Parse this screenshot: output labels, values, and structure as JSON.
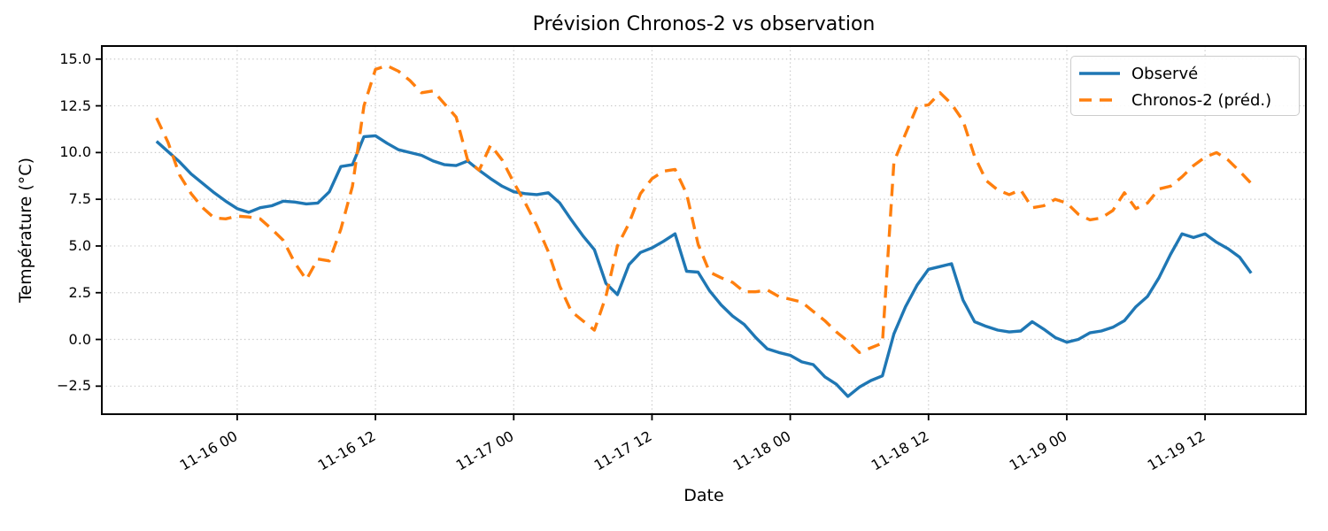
{
  "title": "Prévision Chronos-2 vs observation",
  "x_axis": {
    "label": "Date",
    "ticks": [
      {
        "hour": 7,
        "label": "11-16 00"
      },
      {
        "hour": 19,
        "label": "11-16 12"
      },
      {
        "hour": 31,
        "label": "11-17 00"
      },
      {
        "hour": 43,
        "label": "11-17 12"
      },
      {
        "hour": 55,
        "label": "11-18 00"
      },
      {
        "hour": 67,
        "label": "11-18 12"
      },
      {
        "hour": 79,
        "label": "11-19 00"
      },
      {
        "hour": 91,
        "label": "11-19 12"
      }
    ]
  },
  "y_axis": {
    "label": "Température (°C)",
    "ticks": [
      {
        "value": 15.0,
        "label": "15.0"
      },
      {
        "value": 12.5,
        "label": "12.5"
      },
      {
        "value": 10.0,
        "label": "10.0"
      },
      {
        "value": 7.5,
        "label": "7.5"
      },
      {
        "value": 5.0,
        "label": "5.0"
      },
      {
        "value": 2.5,
        "label": "2.5"
      },
      {
        "value": 0.0,
        "label": "0.0"
      },
      {
        "value": -2.5,
        "label": "−2.5"
      }
    ]
  },
  "legend": {
    "items": [
      {
        "label": "Observé",
        "color": "#1f77b4",
        "dashed": false
      },
      {
        "label": "Chronos-2 (préd.)",
        "color": "#ff7f0e",
        "dashed": true
      }
    ]
  },
  "colors": {
    "observed": "#1f77b4",
    "forecast": "#ff7f0e",
    "grid": "#c9c9c9",
    "spine": "#000000",
    "legend_border": "#cccccc"
  },
  "chart_data": {
    "type": "line",
    "title": "Prévision Chronos-2 vs observation",
    "xlabel": "Date",
    "ylabel": "Température (°C)",
    "x_start_label": "11-15 17:00",
    "x_step_hours": 1,
    "x_unit": "hours since 11-15 17:00, hourly points",
    "xlim_hours": [
      -4.75,
      99.75
    ],
    "ylim": [
      -4.0,
      15.7
    ],
    "grid": true,
    "grid_style": "dotted",
    "legend_position": "upper right",
    "series": [
      {
        "name": "Observé",
        "style": "solid",
        "color": "#1f77b4",
        "values": [
          10.6,
          10.05,
          9.5,
          8.85,
          8.35,
          7.85,
          7.4,
          7.0,
          6.8,
          7.05,
          7.15,
          7.4,
          7.35,
          7.25,
          7.3,
          7.9,
          9.25,
          9.35,
          10.85,
          10.9,
          10.5,
          10.15,
          10.0,
          9.85,
          9.55,
          9.35,
          9.3,
          9.55,
          9.05,
          8.6,
          8.2,
          7.9,
          7.8,
          7.75,
          7.85,
          7.3,
          6.4,
          5.55,
          4.8,
          3.0,
          2.4,
          4.0,
          4.65,
          4.9,
          5.25,
          5.65,
          3.65,
          3.6,
          2.6,
          1.85,
          1.25,
          0.8,
          0.1,
          -0.5,
          -0.7,
          -0.85,
          -1.2,
          -1.35,
          -2.0,
          -2.4,
          -3.05,
          -2.55,
          -2.2,
          -1.95,
          0.3,
          1.75,
          2.9,
          3.75,
          3.9,
          4.05,
          2.1,
          0.95,
          0.7,
          0.5,
          0.4,
          0.45,
          0.95,
          0.55,
          0.1,
          -0.15,
          0.0,
          0.35,
          0.45,
          0.65,
          1.0,
          1.75,
          2.3,
          3.3,
          4.55,
          5.65,
          5.45,
          5.65,
          5.2,
          4.85,
          4.4,
          3.55
        ]
      },
      {
        "name": "Chronos-2 (préd.)",
        "style": "dashed",
        "color": "#ff7f0e",
        "values": [
          11.85,
          10.55,
          8.8,
          7.8,
          7.05,
          6.5,
          6.45,
          6.6,
          6.55,
          6.45,
          5.9,
          5.3,
          4.1,
          3.2,
          4.3,
          4.2,
          5.9,
          8.2,
          12.5,
          14.45,
          14.65,
          14.35,
          13.85,
          13.2,
          13.3,
          12.6,
          11.9,
          9.6,
          9.05,
          10.4,
          9.6,
          8.4,
          7.3,
          6.1,
          4.7,
          2.85,
          1.5,
          1.0,
          0.5,
          2.3,
          5.0,
          6.2,
          7.8,
          8.6,
          9.0,
          9.1,
          7.8,
          5.1,
          3.6,
          3.3,
          3.05,
          2.55,
          2.55,
          2.65,
          2.3,
          2.15,
          2.0,
          1.5,
          1.0,
          0.4,
          -0.1,
          -0.7,
          -0.45,
          -0.2,
          9.5,
          11.0,
          12.45,
          12.55,
          13.2,
          12.6,
          11.7,
          9.8,
          8.5,
          8.0,
          7.75,
          8.0,
          7.05,
          7.15,
          7.5,
          7.3,
          6.7,
          6.4,
          6.5,
          6.9,
          7.85,
          7.0,
          7.3,
          8.05,
          8.2,
          8.7,
          9.3,
          9.75,
          10.0,
          9.6,
          9.0,
          8.35
        ]
      }
    ]
  }
}
